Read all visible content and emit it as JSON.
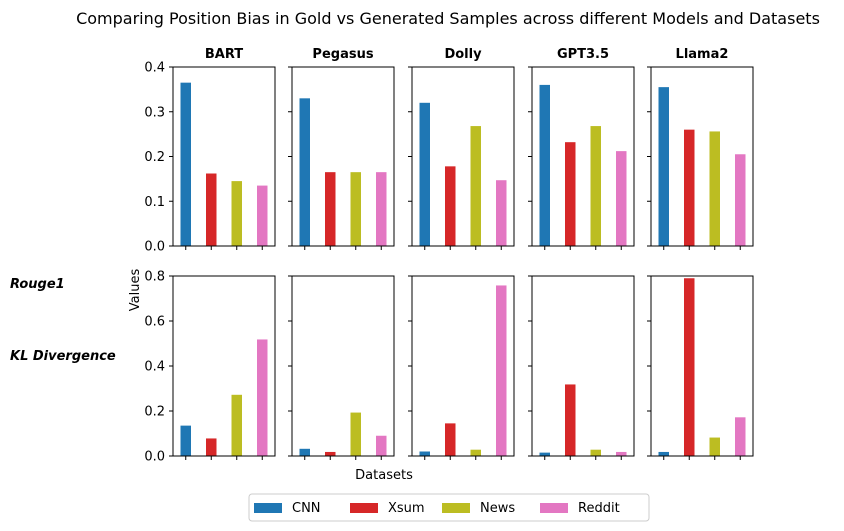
{
  "title": "Comparing Position Bias in Gold vs Generated Samples across different Models and Datasets",
  "row_labels": [
    "Rouge1",
    "KL Divergence"
  ],
  "xlabel": "Datasets",
  "ylabel": "Values",
  "legend": {
    "placement": "bottom-center",
    "entries": [
      {
        "label": "CNN",
        "color": "#1f77b4"
      },
      {
        "label": "Xsum",
        "color": "#d62728"
      },
      {
        "label": "News",
        "color": "#bcbd22"
      },
      {
        "label": "Reddit",
        "color": "#e377c2"
      }
    ]
  },
  "chart_data": {
    "type": "bar",
    "categories": [
      "CNN",
      "Xsum",
      "News",
      "Reddit"
    ],
    "colors": [
      "#1f77b4",
      "#d62728",
      "#bcbd22",
      "#e377c2"
    ],
    "models": [
      "BART",
      "Pegasus",
      "Dolly",
      "GPT3.5",
      "Llama2"
    ],
    "rows": [
      {
        "name": "Rouge1",
        "ylim": [
          0,
          0.4
        ],
        "yticks": [
          "0.0",
          "0.1",
          "0.2",
          "0.3",
          "0.4"
        ],
        "values": [
          [
            0.365,
            0.162,
            0.145,
            0.135
          ],
          [
            0.33,
            0.165,
            0.165,
            0.165
          ],
          [
            0.32,
            0.178,
            0.268,
            0.147
          ],
          [
            0.36,
            0.232,
            0.268,
            0.212
          ],
          [
            0.355,
            0.26,
            0.256,
            0.205
          ]
        ]
      },
      {
        "name": "KL Divergence",
        "ylim": [
          0,
          0.8
        ],
        "yticks": [
          "0.0",
          "0.2",
          "0.4",
          "0.6",
          "0.8"
        ],
        "values": [
          [
            0.135,
            0.078,
            0.272,
            0.518
          ],
          [
            0.032,
            0.018,
            0.193,
            0.09
          ],
          [
            0.02,
            0.145,
            0.028,
            0.758
          ],
          [
            0.015,
            0.318,
            0.028,
            0.018
          ],
          [
            0.018,
            0.79,
            0.082,
            0.172
          ]
        ]
      }
    ]
  }
}
